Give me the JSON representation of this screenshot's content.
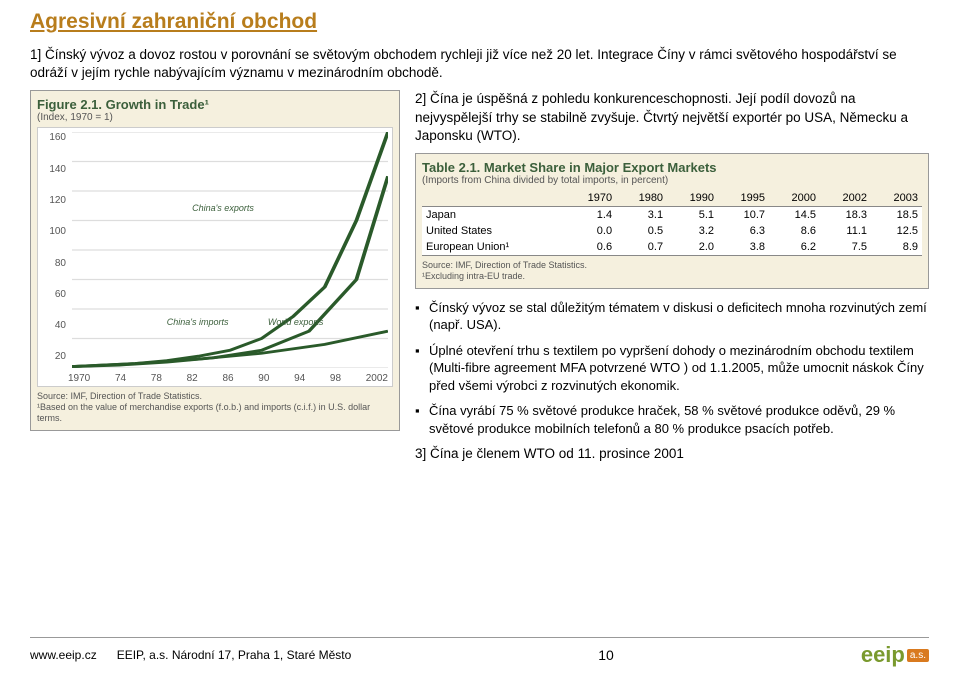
{
  "title": "Agresivní zahraniční obchod",
  "intro": "1] Čínský vývoz a dovoz rostou v porovnání se světovým obchodem rychleji již více než 20 let. Integrace Číny v rámci světového hospodářství se odráží v jejím rychle nabývajícím významu v mezinárodním obchodě.",
  "para2": "2] Čína je úspěšná z pohledu konkurenceschopnosti. Její podíl dovozů na nejvyspělejší trhy se stabilně zvyšuje. Čtvrtý největší exportér po USA, Německu a Japonsku (WTO).",
  "figure": {
    "title": "Figure 2.1. Growth in Trade¹",
    "subtitle": "(Index, 1970 = 1)",
    "y_ticks": [
      "160",
      "140",
      "120",
      "100",
      "80",
      "60",
      "40",
      "20"
    ],
    "x_ticks": [
      "1970",
      "74",
      "78",
      "82",
      "86",
      "90",
      "94",
      "98",
      "2002"
    ],
    "series": {
      "china_exports": {
        "label": "China's exports",
        "points": [
          [
            0,
            1
          ],
          [
            10,
            2
          ],
          [
            20,
            3
          ],
          [
            30,
            5
          ],
          [
            40,
            8
          ],
          [
            50,
            12
          ],
          [
            60,
            20
          ],
          [
            70,
            35
          ],
          [
            80,
            55
          ],
          [
            90,
            100
          ],
          [
            100,
            160
          ]
        ]
      },
      "china_imports": {
        "label": "China's imports",
        "points": [
          [
            0,
            1
          ],
          [
            15,
            2
          ],
          [
            30,
            4
          ],
          [
            45,
            7
          ],
          [
            60,
            12
          ],
          [
            75,
            25
          ],
          [
            90,
            60
          ],
          [
            100,
            130
          ]
        ]
      },
      "world_exports": {
        "label": "World exports",
        "points": [
          [
            0,
            1
          ],
          [
            20,
            3
          ],
          [
            40,
            6
          ],
          [
            60,
            10
          ],
          [
            80,
            16
          ],
          [
            100,
            25
          ]
        ]
      }
    },
    "source": "Source: IMF, Direction of Trade Statistics.\n¹Based on the value of merchandise exports (f.o.b.) and imports (c.i.f.) in U.S. dollar terms.",
    "line_color": "#2a5a2a",
    "bg_color": "#f5f0de"
  },
  "table": {
    "title": "Table 2.1. Market Share in Major Export Markets",
    "subtitle": "(Imports from China divided by total imports, in percent)",
    "columns": [
      "",
      "1970",
      "1980",
      "1990",
      "1995",
      "2000",
      "2002",
      "2003"
    ],
    "rows": [
      [
        "Japan",
        "1.4",
        "3.1",
        "5.1",
        "10.7",
        "14.5",
        "18.3",
        "18.5"
      ],
      [
        "United States",
        "0.0",
        "0.5",
        "3.2",
        "6.3",
        "8.6",
        "11.1",
        "12.5"
      ],
      [
        "European Union¹",
        "0.6",
        "0.7",
        "2.0",
        "3.8",
        "6.2",
        "7.5",
        "8.9"
      ]
    ],
    "source": "Source: IMF, Direction of Trade Statistics.\n¹Excluding intra-EU trade."
  },
  "bullets": [
    "Čínský vývoz se stal důležitým tématem v diskusi o deficitech mnoha rozvinutých zemí (např. USA).",
    "Úplné otevření trhu s textilem po vypršení dohody o mezinárodním obchodu textilem (Multi-fibre agreement MFA potvrzené WTO ) od 1.1.2005, může umocnit náskok Číny před všemi výrobci z rozvinutých ekonomik.",
    "Čína vyrábí 75 % světové produkce hraček, 58 % světové produkce oděvů, 29 % světové produkce mobilních telefonů a 80 % produkce psacích potřeb.",
    "3] Čína je členem WTO od 11. prosince 2001"
  ],
  "footer": {
    "url": "www.eeip.cz",
    "address": "EEIP, a.s. Národní 17, Praha 1, Staré Město",
    "page": "10",
    "logo_text": "eeip",
    "logo_suffix": "a.s."
  }
}
